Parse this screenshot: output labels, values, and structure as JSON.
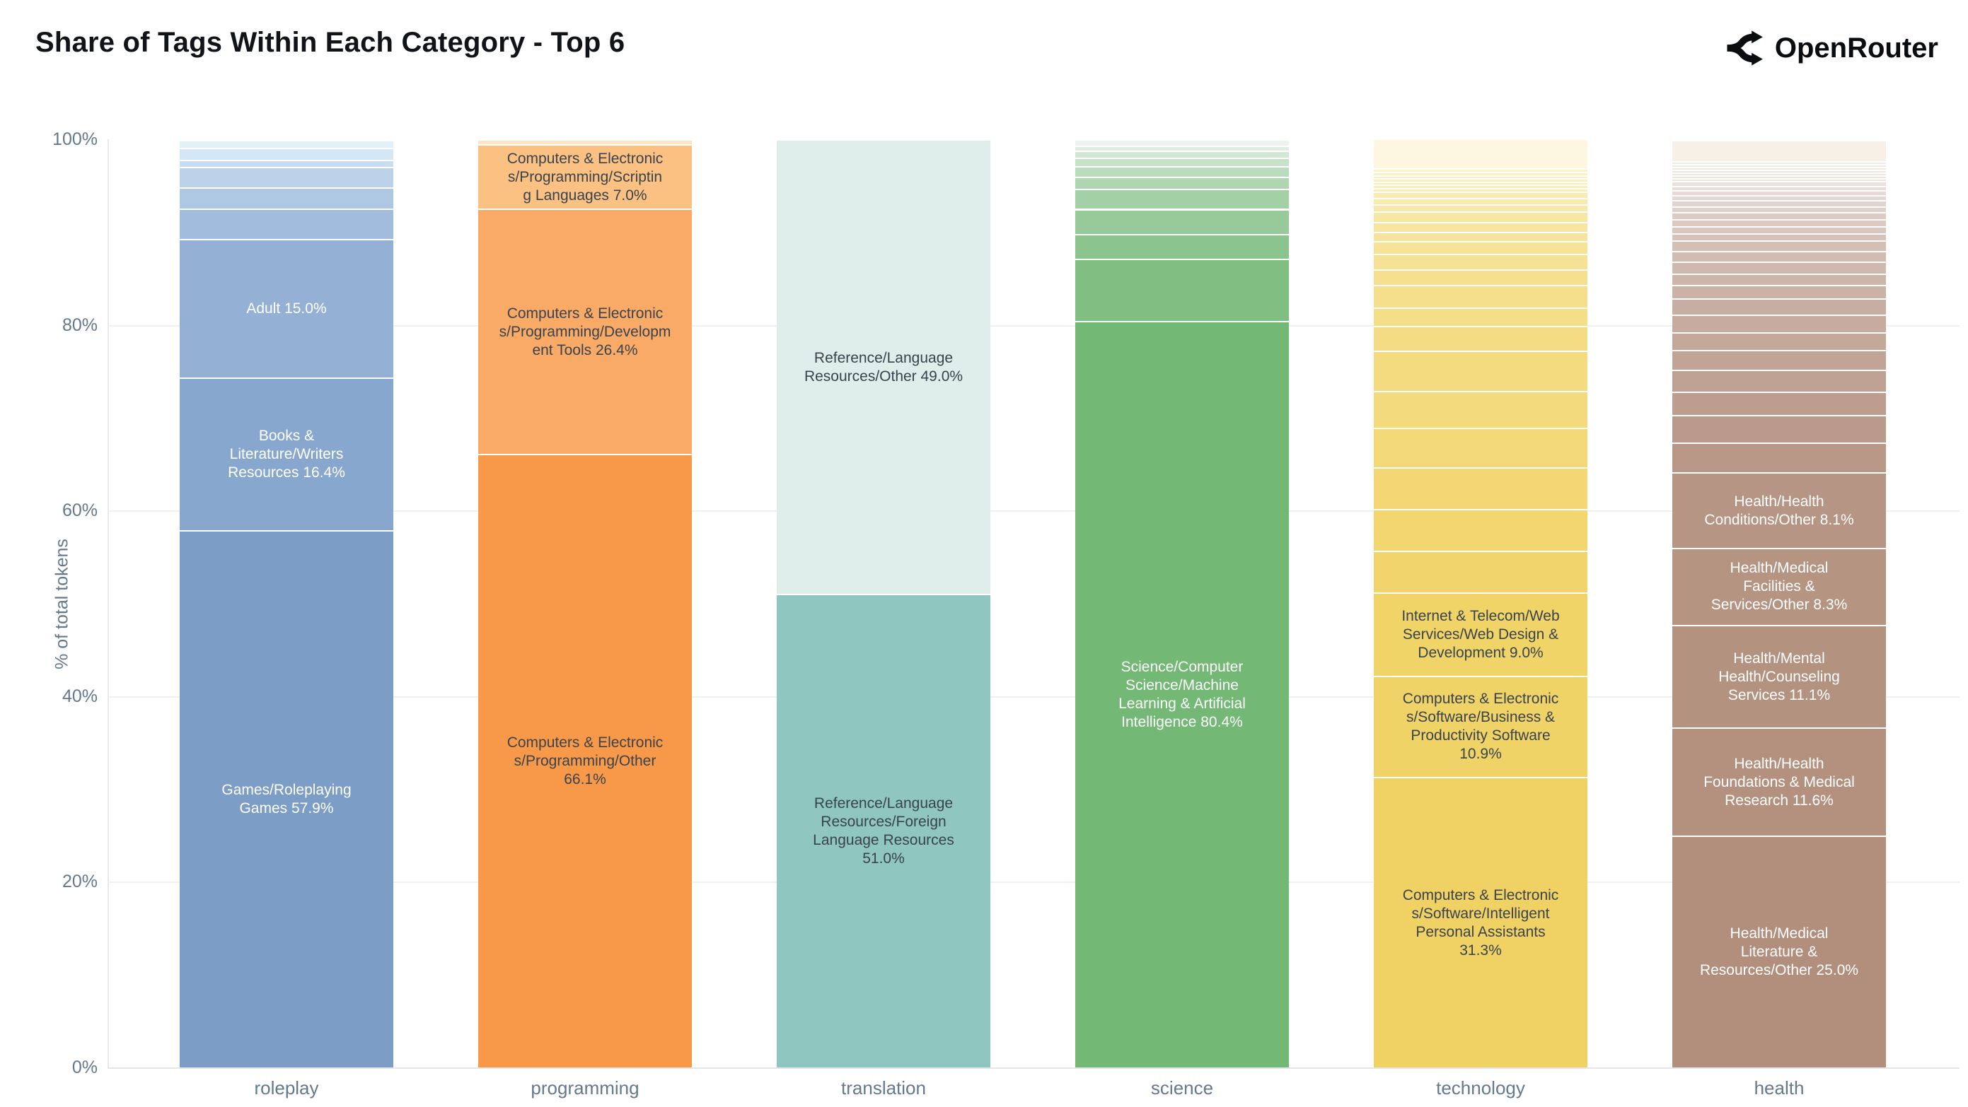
{
  "header": {
    "title": "Share of Tags Within Each Category - Top 6",
    "brand": "OpenRouter"
  },
  "colors": {
    "axis_text": "#64798c",
    "grid": "#eef1f3",
    "axis_line": "#e2e6e9",
    "title_text": "#101418",
    "label_dark": "#39434e",
    "label_light": "#ffffff"
  },
  "chart_data": {
    "type": "bar",
    "stacked": true,
    "units": "percent of total tokens",
    "title": "Share of Tags Within Each Category - Top 6",
    "xlabel": "",
    "ylabel": "% of total tokens",
    "ylim": [
      0,
      100
    ],
    "yticks": [
      0,
      20,
      40,
      60,
      80,
      100
    ],
    "grid": true,
    "legend": "none",
    "categories": [
      "roleplay",
      "programming",
      "translation",
      "science",
      "technology",
      "health"
    ],
    "bars": [
      {
        "category": "roleplay",
        "segments": [
          {
            "value": 57.9,
            "color": "#7c9dc6",
            "label": "Games/Roleplaying\nGames 57.9%",
            "label_color": "light",
            "tag": "Games/Roleplaying Games"
          },
          {
            "value": 16.4,
            "color": "#88a7ce",
            "label": "Books &\nLiterature/Writers\nResources 16.4%",
            "label_color": "light",
            "tag": "Books & Literature/Writers Resources"
          },
          {
            "value": 15.0,
            "color": "#94b1d5",
            "label": "Adult 15.0%",
            "label_color": "light",
            "tag": "Adult"
          },
          {
            "value": 3.2,
            "color": "#a1bcdc"
          },
          {
            "value": 2.3,
            "color": "#aec7e2"
          },
          {
            "value": 2.2,
            "color": "#bbd2e9"
          },
          {
            "value": 0.8,
            "color": "#c8ddef"
          },
          {
            "value": 1.3,
            "color": "#d5e7f5"
          },
          {
            "value": 0.8,
            "color": "#e2f0fa"
          }
        ]
      },
      {
        "category": "programming",
        "segments": [
          {
            "value": 66.1,
            "color": "#f8994a",
            "label": "Computers & Electronic\ns/Programming/Other\n66.1%",
            "label_color": "dark",
            "tag": "Computers & Electronics/Programming/Other"
          },
          {
            "value": 26.4,
            "color": "#f9aa66",
            "label": "Computers & Electronic\ns/Programming/Developm\nent Tools 26.4%",
            "label_color": "dark",
            "tag": "Computers & Electronics/Programming/Development Tools"
          },
          {
            "value": 7.0,
            "color": "#fac183",
            "label": "Computers & Electronic\ns/Programming/Scriptin\ng Languages 7.0%",
            "label_color": "dark",
            "tag": "Computers & Electronics/Programming/Scripting Languages"
          },
          {
            "value": 0.5,
            "color": "#fce3c2"
          }
        ]
      },
      {
        "category": "translation",
        "segments": [
          {
            "value": 51.0,
            "color": "#8fc6c0",
            "label": "Reference/Language\nResources/Foreign\nLanguage Resources\n51.0%",
            "label_color": "dark",
            "tag": "Reference/Language Resources/Foreign Language Resources"
          },
          {
            "value": 49.0,
            "color": "#dfedeb",
            "label": "Reference/Language\nResources/Other 49.0%",
            "label_color": "dark",
            "tag": "Reference/Language Resources/Other"
          }
        ]
      },
      {
        "category": "science",
        "segments": [
          {
            "value": 80.4,
            "color": "#74b875",
            "label": "Science/Computer\nScience/Machine\nLearning & Artificial\nIntelligence 80.4%",
            "label_color": "light",
            "tag": "Science/Computer Science/Machine Learning & Artificial Intelligence"
          },
          {
            "value": 6.7,
            "color": "#80be81"
          },
          {
            "value": 2.7,
            "color": "#8bc48c"
          },
          {
            "value": 2.7,
            "color": "#97ca98"
          },
          {
            "value": 2.2,
            "color": "#a3d0a4"
          },
          {
            "value": 1.3,
            "color": "#afd6b0"
          },
          {
            "value": 1.1,
            "color": "#bbdcbc"
          },
          {
            "value": 0.9,
            "color": "#c7e2c8"
          },
          {
            "value": 0.8,
            "color": "#d3e8d4"
          },
          {
            "value": 0.5,
            "color": "#dfeee0"
          },
          {
            "value": 0.7,
            "color": "#ebf4ec"
          }
        ]
      },
      {
        "category": "technology",
        "segments": [
          {
            "value": 31.3,
            "color": "#f0d264",
            "label": "Computers & Electronic\ns/Software/Intelligent\nPersonal Assistants\n31.3%",
            "label_color": "dark",
            "tag": "Computers & Electronics/Software/Intelligent Personal Assistants"
          },
          {
            "value": 10.9,
            "color": "#f0d366",
            "label": "Computers & Electronic\ns/Software/Business &\nProductivity Software\n10.9%",
            "label_color": "dark",
            "tag": "Computers & Electronics/Software/Business & Productivity Software"
          },
          {
            "value": 9.0,
            "color": "#f1d468",
            "label": "Internet & Telecom/Web\nServices/Web Design &\nDevelopment 9.0%",
            "label_color": "dark",
            "tag": "Internet & Telecom/Web Services/Web Design & Development"
          },
          {
            "value": 4.5,
            "color": "#f1d56c"
          },
          {
            "value": 4.5,
            "color": "#f2d670"
          },
          {
            "value": 4.5,
            "color": "#f2d774"
          },
          {
            "value": 4.2,
            "color": "#f3d878"
          },
          {
            "value": 4.0,
            "color": "#f3da7c"
          },
          {
            "value": 4.3,
            "color": "#f4db80"
          },
          {
            "value": 2.7,
            "color": "#f4dc84"
          },
          {
            "value": 2.0,
            "color": "#f5de88"
          },
          {
            "value": 2.4,
            "color": "#f5df8c"
          },
          {
            "value": 1.7,
            "color": "#f6e090"
          },
          {
            "value": 1.7,
            "color": "#f6e294"
          },
          {
            "value": 1.3,
            "color": "#f7e398"
          },
          {
            "value": 1.0,
            "color": "#f7e49c"
          },
          {
            "value": 1.1,
            "color": "#f8e6a0"
          },
          {
            "value": 1.1,
            "color": "#f8e7a4"
          },
          {
            "value": 0.8,
            "color": "#f9e8a8"
          },
          {
            "value": 0.7,
            "color": "#f9eaac"
          },
          {
            "value": 0.7,
            "color": "#faebb0"
          },
          {
            "value": 0.35,
            "color": "#faecb4"
          },
          {
            "value": 0.35,
            "color": "#faedb7"
          },
          {
            "value": 0.35,
            "color": "#fbeeba"
          },
          {
            "value": 0.35,
            "color": "#fbefbd"
          },
          {
            "value": 0.35,
            "color": "#fbf0c0"
          },
          {
            "value": 0.35,
            "color": "#fcf1c3"
          },
          {
            "value": 0.35,
            "color": "#fcf2c6"
          },
          {
            "value": 3.2,
            "color": "#fdf7e0"
          }
        ]
      },
      {
        "category": "health",
        "segments": [
          {
            "value": 25.0,
            "color": "#b28f7c",
            "label": "Health/Medical\nLiterature &\nResources/Other 25.0%",
            "label_color": "light",
            "tag": "Health/Medical Literature & Resources/Other"
          },
          {
            "value": 11.6,
            "color": "#b3917e",
            "label": "Health/Health\nFoundations & Medical\nResearch 11.6%",
            "label_color": "light",
            "tag": "Health/Health Foundations & Medical Research"
          },
          {
            "value": 11.1,
            "color": "#b49280",
            "label": "Health/Mental\nHealth/Counseling\nServices 11.1%",
            "label_color": "light",
            "tag": "Health/Mental Health/Counseling Services"
          },
          {
            "value": 8.3,
            "color": "#b59482",
            "label": "Health/Medical\nFacilities &\nServices/Other 8.3%",
            "label_color": "light",
            "tag": "Health/Medical Facilities & Services/Other"
          },
          {
            "value": 8.1,
            "color": "#b69584",
            "label": "Health/Health\nConditions/Other 8.1%",
            "label_color": "light",
            "tag": "Health/Health Conditions/Other"
          },
          {
            "value": 3.2,
            "color": "#b89786"
          },
          {
            "value": 3.0,
            "color": "#ba9a8a"
          },
          {
            "value": 2.5,
            "color": "#bd9e8e"
          },
          {
            "value": 2.4,
            "color": "#bfa192"
          },
          {
            "value": 2.1,
            "color": "#c1a496"
          },
          {
            "value": 1.9,
            "color": "#c4a89a"
          },
          {
            "value": 1.9,
            "color": "#c6ab9e"
          },
          {
            "value": 1.75,
            "color": "#c8aea2"
          },
          {
            "value": 1.45,
            "color": "#cbb2a6"
          },
          {
            "value": 1.2,
            "color": "#cdb5aa"
          },
          {
            "value": 1.3,
            "color": "#cfb8ae"
          },
          {
            "value": 1.15,
            "color": "#d2bcb2"
          },
          {
            "value": 1.15,
            "color": "#d4bfb6"
          },
          {
            "value": 0.76,
            "color": "#d6c2ba"
          },
          {
            "value": 0.76,
            "color": "#d9c6be"
          },
          {
            "value": 0.76,
            "color": "#dbc9c2"
          },
          {
            "value": 0.76,
            "color": "#ddccc6"
          },
          {
            "value": 0.6,
            "color": "#e0d0ca"
          },
          {
            "value": 0.68,
            "color": "#e2d3ce"
          },
          {
            "value": 0.6,
            "color": "#e4d6d2"
          },
          {
            "value": 0.53,
            "color": "#e7dad6"
          },
          {
            "value": 0.45,
            "color": "#e9ddda"
          },
          {
            "value": 0.53,
            "color": "#ebe0dc"
          },
          {
            "value": 0.3,
            "color": "#ece4da"
          },
          {
            "value": 0.3,
            "color": "#ede5dc"
          },
          {
            "value": 0.3,
            "color": "#eee6de"
          },
          {
            "value": 0.3,
            "color": "#eee7df"
          },
          {
            "value": 0.3,
            "color": "#efe8e0"
          },
          {
            "value": 0.3,
            "color": "#f0e9e1"
          },
          {
            "value": 0.3,
            "color": "#f0eae2"
          },
          {
            "value": 2.3,
            "color": "#f6f0e6"
          }
        ]
      }
    ]
  }
}
